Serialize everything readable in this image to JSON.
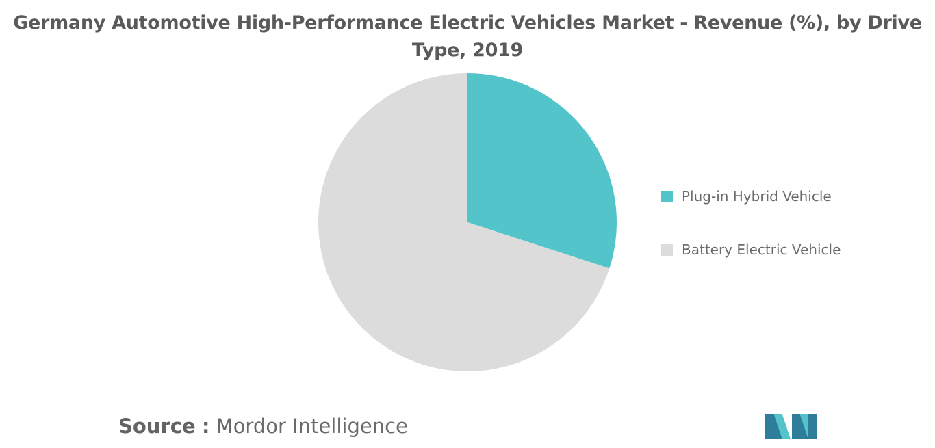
{
  "chart_data": {
    "type": "pie",
    "title_lines": [
      "Germany Automotive High-Performance Electric Vehicles Market - Revenue (%), by Drive",
      "Type, 2019"
    ],
    "slices": [
      {
        "label": "Plug-in Hybrid Vehicle",
        "value": 30,
        "color": "#52c4ca"
      },
      {
        "label": "Battery Electric Vehicle",
        "value": 70,
        "color": "#dcdcdc"
      }
    ],
    "start_angle_deg": 0,
    "direction": "clockwise",
    "legend_position": "right"
  },
  "source": {
    "label": "Source",
    "separator": ":",
    "value": "Mordor Intelligence"
  },
  "logo": {
    "name": "mordor-intelligence-logo",
    "colors": [
      "#2e7d9a",
      "#52c4ca"
    ]
  }
}
